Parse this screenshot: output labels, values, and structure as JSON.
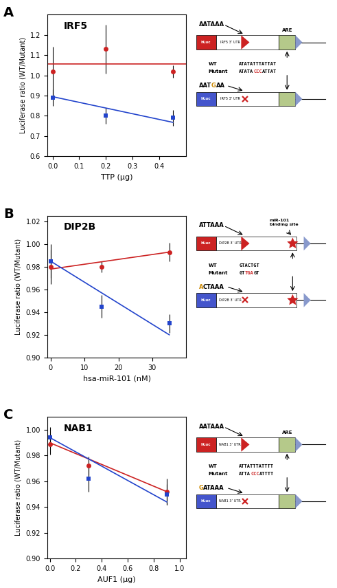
{
  "chart_data": [
    {
      "type": "scatter",
      "panel_label": "A",
      "title": "IRF5",
      "xlabel": "TTP (μg)",
      "ylabel": "Luciferase ratio (WT/Mutant)",
      "series": [
        {
          "type": "scatter",
          "marker": "circle",
          "color": "#cc2222",
          "x": [
            0.0,
            0.2,
            0.45
          ],
          "values": [
            1.02,
            1.13,
            1.02
          ],
          "error": [
            0.12,
            0.12,
            0.03
          ]
        },
        {
          "type": "scatter",
          "marker": "square",
          "color": "#2244cc",
          "x": [
            0.0,
            0.2,
            0.45
          ],
          "values": [
            0.89,
            0.8,
            0.79
          ],
          "error": [
            0.04,
            0.04,
            0.04
          ]
        },
        {
          "type": "line",
          "line_style": "solid",
          "color": "#cc2222",
          "x": [
            -0.02,
            0.5
          ],
          "values": [
            1.055,
            1.055
          ]
        },
        {
          "type": "line",
          "line_style": "solid",
          "color": "#2244cc",
          "x": [
            0.0,
            0.45
          ],
          "values": [
            0.895,
            0.768
          ]
        }
      ],
      "xlim": [
        -0.02,
        0.5
      ],
      "ylim": [
        0.6,
        1.3
      ],
      "xticks": [
        {
          "value": 0.0,
          "label": "0.0"
        },
        0.1,
        0.2,
        0.3,
        0.4
      ],
      "yticks": [
        0.6,
        0.7,
        0.8,
        0.9,
        {
          "value": 1.0,
          "label": "1.0"
        },
        1.1,
        1.2
      ],
      "grid": false,
      "diagram": {
        "top_label": "AATAAA",
        "are_label": "ARE",
        "box_label": "hLuc",
        "top_utr": "IRF5 3’ UTR",
        "bottom_utr": "IRF5 3’ UTR",
        "seq_names": [
          "WT",
          "Mutant"
        ],
        "wt_seq": "ATATATTTATTAT",
        "mut_seq": {
          "prefix": "ATATA",
          "changed": "CCC",
          "suffix": "ATTAT"
        },
        "bottom_label": {
          "prefix": "AAT",
          "changed": "G",
          "suffix": "AA"
        },
        "colors": {
          "top_box": "#cc2222",
          "bottom_box": "#4455cc",
          "are": "#b5c98a",
          "marks": "#cc2222",
          "end": "#8899cc",
          "changed_seq": "#cc2222",
          "changed_label": "#cc8800"
        }
      }
    },
    {
      "type": "scatter",
      "panel_label": "B",
      "title": "DIP2B",
      "xlabel": "hsa-miR-101 (nM)",
      "ylabel": "Luciferase ratio (WT/Mutant)",
      "series": [
        {
          "type": "scatter",
          "marker": "circle",
          "color": "#cc2222",
          "x": [
            0.0,
            15.0,
            35.0
          ],
          "values": [
            0.98,
            0.98,
            0.993
          ],
          "error": [
            0.015,
            0.005,
            0.008
          ]
        },
        {
          "type": "scatter",
          "marker": "square",
          "color": "#2244cc",
          "x": [
            0.0,
            15.0,
            35.0
          ],
          "values": [
            0.985,
            0.945,
            0.93
          ],
          "error": [
            0.015,
            0.01,
            0.008
          ]
        },
        {
          "type": "line",
          "line_style": "solid",
          "color": "#cc2222",
          "x": [
            0.0,
            35.0
          ],
          "values": [
            0.978,
            0.993
          ]
        },
        {
          "type": "line",
          "line_style": "solid",
          "color": "#2244cc",
          "x": [
            0.0,
            35.0
          ],
          "values": [
            0.985,
            0.92
          ]
        }
      ],
      "xlim": [
        -1,
        40
      ],
      "ylim": [
        0.9,
        1.025
      ],
      "xticks": [
        0,
        10,
        20,
        30
      ],
      "yticks": [
        {
          "value": 0.9,
          "label": "0.90"
        },
        0.92,
        0.94,
        0.96,
        0.98,
        {
          "value": 1.0,
          "label": "1.00"
        },
        1.02
      ],
      "grid": false,
      "diagram": {
        "top_label": "ATTAAA",
        "site_label": "miR-101\nbinding site",
        "box_label": "hLuc",
        "top_utr": "DIP2B 3’ UTR",
        "bottom_utr": "DIP2B 3’ UTR",
        "seq_names": [
          "WT",
          "Mutant"
        ],
        "wt_seq": "GTACTGT",
        "mut_seq": {
          "prefix": "GT",
          "changed": "TGA",
          "suffix": "GT"
        },
        "bottom_label": {
          "changed": "A",
          "suffix": "CTAAA"
        },
        "colors": {
          "top_box": "#cc2222",
          "bottom_box": "#4455cc",
          "marks": "#cc2222",
          "end": "#8899cc",
          "changed_seq": "#cc2222",
          "changed_label": "#cc8800"
        }
      }
    },
    {
      "type": "scatter",
      "panel_label": "C",
      "title": "NAB1",
      "xlabel": "AUF1 (μg)",
      "ylabel": "Luciferase ratio (WT/Mutant)",
      "series": [
        {
          "type": "scatter",
          "marker": "circle",
          "color": "#cc2222",
          "x": [
            0.0,
            0.3,
            0.9
          ],
          "values": [
            0.989,
            0.972,
            0.952
          ],
          "error": [
            0.008,
            0.007,
            0.01
          ]
        },
        {
          "type": "scatter",
          "marker": "square",
          "color": "#2244cc",
          "x": [
            0.0,
            0.3,
            0.9
          ],
          "values": [
            0.994,
            0.962,
            0.95
          ],
          "error": [
            0.008,
            0.01,
            0.008
          ]
        },
        {
          "type": "line",
          "line_style": "solid",
          "color": "#cc2222",
          "x": [
            0.0,
            0.9
          ],
          "values": [
            0.99,
            0.952
          ]
        },
        {
          "type": "line",
          "line_style": "solid",
          "color": "#2244cc",
          "x": [
            0.0,
            0.9
          ],
          "values": [
            0.994,
            0.944
          ]
        }
      ],
      "xlim": [
        -0.02,
        1.05
      ],
      "ylim": [
        0.9,
        1.01
      ],
      "xticks": [
        {
          "value": 0.0,
          "label": "0.0"
        },
        0.2,
        0.4,
        0.6,
        0.8,
        {
          "value": 1.0,
          "label": "1.0"
        }
      ],
      "yticks": [
        {
          "value": 0.9,
          "label": "0.90"
        },
        0.92,
        0.94,
        0.96,
        0.98,
        {
          "value": 1.0,
          "label": "1.00"
        }
      ],
      "grid": false,
      "diagram": {
        "top_label": "AATAAA",
        "are_label": "ARE",
        "box_label": "hLuc",
        "top_utr": "NAB1 3’ UTR",
        "bottom_utr": "NAB1 3’ UTR",
        "seq_names": [
          "WT",
          "Mutant"
        ],
        "wt_seq": "ATTATTTATTTT",
        "mut_seq": {
          "prefix": "ATTA",
          "changed": "CCC",
          "suffix": "ATTTT"
        },
        "bottom_label": {
          "changed": "G",
          "suffix": "ATAAA"
        },
        "colors": {
          "top_box": "#cc2222",
          "bottom_box": "#4455cc",
          "are": "#b5c98a",
          "marks": "#cc2222",
          "end": "#8899cc",
          "changed_seq": "#cc2222",
          "changed_label": "#cc8800"
        }
      }
    }
  ]
}
